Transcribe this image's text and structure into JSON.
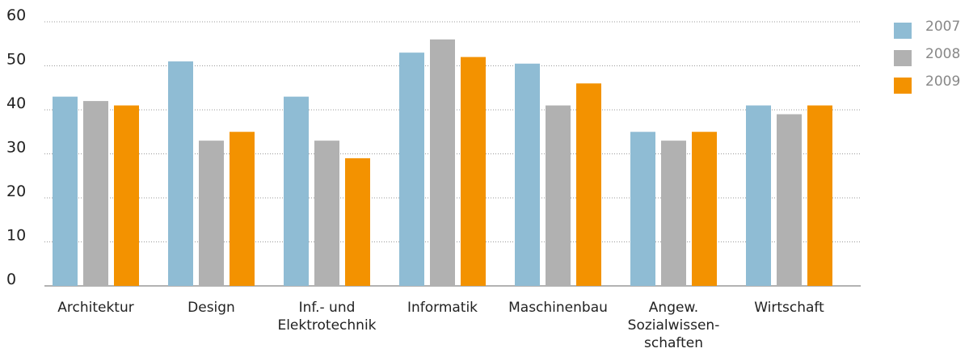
{
  "chart_data": {
    "type": "bar",
    "categories": [
      "Architektur",
      "Design",
      "Inf.- und\nElektrotechnik",
      "Informatik",
      "Maschinenbau",
      "Angew.\nSozialwissen-\nschaften",
      "Wirtschaft"
    ],
    "series": [
      {
        "name": "2007",
        "color": "#8fbcd4",
        "values": [
          43,
          51,
          43,
          53,
          50.5,
          35,
          41
        ]
      },
      {
        "name": "2008",
        "color": "#b1b1b1",
        "values": [
          42,
          33,
          33,
          56,
          41,
          33,
          39
        ]
      },
      {
        "name": "2009",
        "color": "#f39200",
        "values": [
          41,
          35,
          29,
          52,
          46,
          35,
          41
        ]
      }
    ],
    "ylim": [
      0,
      60
    ],
    "yticks": [
      0,
      10,
      20,
      30,
      40,
      50,
      60
    ],
    "grid": true,
    "legend": "right"
  }
}
